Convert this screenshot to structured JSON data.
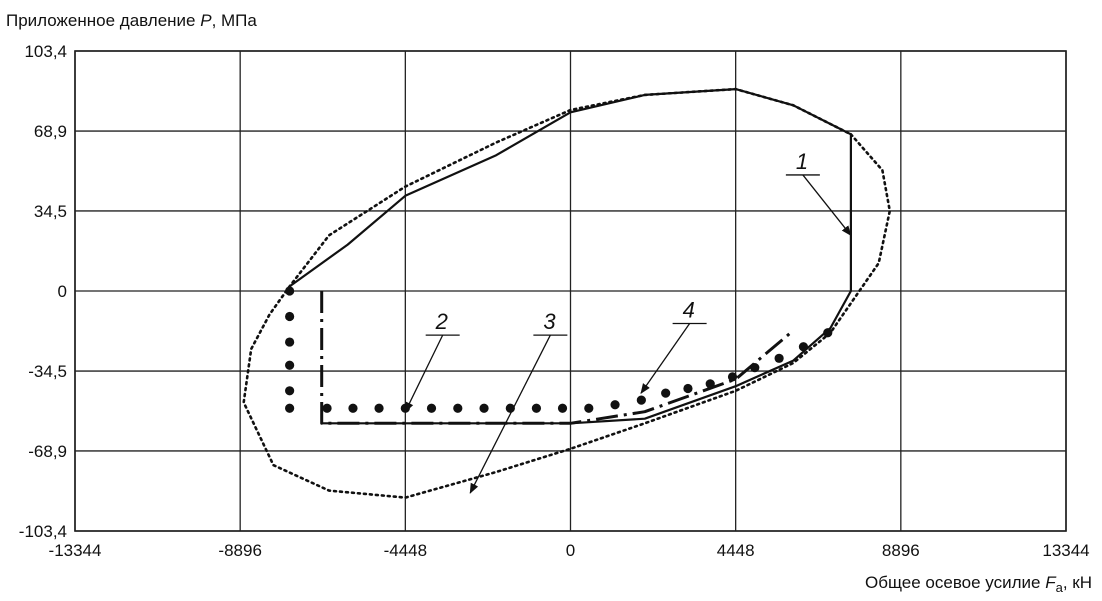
{
  "chart_data": {
    "type": "line",
    "ylabel": {
      "prefix": "Приложенное давление ",
      "var": "P",
      "suffix": ", МПа"
    },
    "xlabel": {
      "prefix": "Общее осевое усилие ",
      "var": "F",
      "sub": "a",
      "suffix": ", кН"
    },
    "xlim": [
      -13344,
      13344
    ],
    "ylim": [
      -103.4,
      103.4
    ],
    "xticks": [
      -13344,
      -8896,
      -4448,
      0,
      4448,
      8896,
      13344
    ],
    "xtick_labels": [
      "-13344",
      "-8896",
      "-4448",
      "0",
      "4448",
      "8896",
      "13344"
    ],
    "yticks": [
      103.4,
      68.9,
      34.5,
      0,
      -34.5,
      -68.9,
      -103.4
    ],
    "ytick_labels": [
      "103,4",
      "68,9",
      "34,5",
      "0",
      "-34,5",
      "-68,9",
      "-103,4"
    ],
    "grid": true,
    "curve_labels": [
      "1",
      "2",
      "3",
      "4"
    ],
    "series": [
      {
        "name": "1",
        "style": "solid",
        "x": [
          -7564,
          -6000,
          -4448,
          -2000,
          0,
          2000,
          4448,
          6000,
          7550,
          7550,
          7550,
          7000,
          6000,
          4448,
          2000,
          0,
          -1500,
          -6700,
          -6700
        ],
        "y": [
          2,
          20,
          41,
          58.5,
          77,
          84.5,
          87,
          80,
          67.5,
          34.5,
          0,
          -16,
          -30,
          -41,
          -55,
          -57,
          -57,
          -57,
          -53
        ]
      },
      {
        "name": "2",
        "style": "dash-dot",
        "x": [
          -6700,
          -6700,
          -4448,
          -2000,
          0,
          2000,
          4448,
          6000
        ],
        "y": [
          0,
          -57,
          -57,
          -57,
          -57,
          -52,
          -38,
          -17
        ]
      },
      {
        "name": "3",
        "style": "dotted",
        "x": [
          7550,
          8400,
          8600,
          8300,
          7000,
          6000,
          4448,
          2000,
          0,
          -2000,
          -4448,
          -6500,
          -8000,
          -8800,
          -8600,
          -8100,
          -7564,
          -6500,
          -4448,
          -2000,
          0,
          2000,
          4448,
          6000,
          7550
        ],
        "y": [
          67.5,
          52,
          34.5,
          12,
          -18,
          -31,
          -43,
          -57,
          -68,
          -78,
          -89,
          -86,
          -75,
          -48,
          -25,
          -10,
          2,
          24,
          45,
          64,
          78,
          84.5,
          87,
          80,
          67.5
        ]
      },
      {
        "name": "4",
        "style": "dots",
        "x": [
          -7564,
          -7564,
          -7564,
          -7564,
          -7564,
          -7564,
          -6556,
          -5858,
          -5156,
          -4448,
          -3743,
          -3035,
          -2328,
          -1620,
          -918,
          -215,
          493,
          1200,
          1908,
          2563,
          3163,
          3763,
          4363,
          4963,
          5618,
          6273,
          6928
        ],
        "y": [
          0,
          -11,
          -22,
          -32,
          -43,
          -50.5,
          -50.5,
          -50.5,
          -50.5,
          -50.5,
          -50.5,
          -50.5,
          -50.5,
          -50.5,
          -50.5,
          -50.5,
          -50.5,
          -49,
          -47,
          -44,
          -42,
          -40,
          -37,
          -33,
          -29,
          -24,
          -18
        ]
      }
    ]
  }
}
